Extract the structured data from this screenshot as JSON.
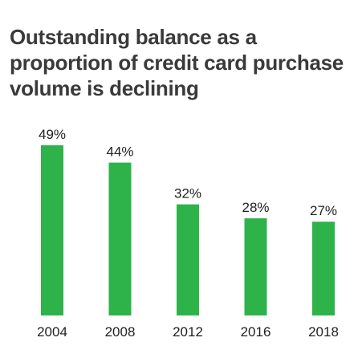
{
  "title": "Outstanding balance as a proportion of credit card purchase volume is declining",
  "chart_data": {
    "type": "bar",
    "title": "Outstanding balance as a proportion of credit card purchase volume is declining",
    "categories": [
      "2004",
      "2008",
      "2012",
      "2016",
      "2018"
    ],
    "values": [
      49,
      44,
      32,
      28,
      27
    ],
    "value_labels": [
      "49%",
      "44%",
      "32%",
      "28%",
      "27%"
    ],
    "xlabel": "",
    "ylabel": "",
    "ylim": [
      0,
      49
    ],
    "grid": false,
    "legend": "none",
    "bar_color": "#2db34a"
  }
}
